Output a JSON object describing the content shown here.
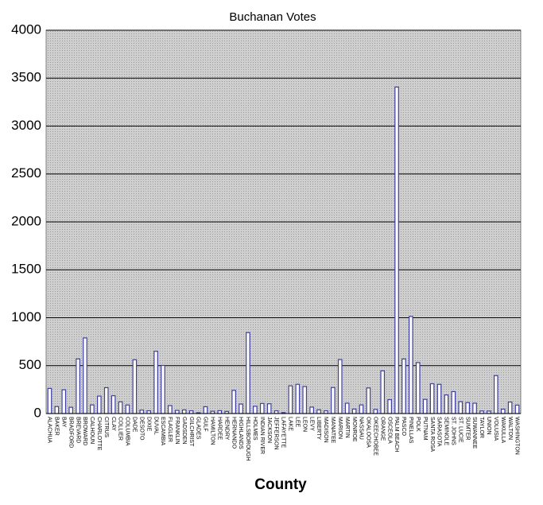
{
  "chart_data": {
    "type": "bar",
    "title": "Buchanan Votes",
    "x_label": "County",
    "categories": [
      "ALACHUA",
      "BAKER",
      "BAY",
      "BRADFORD",
      "BREVARD",
      "BROWARD",
      "CALHOUN",
      "CHARLOTTE",
      "CITRUS",
      "CLAY",
      "COLLIER",
      "COLUMBIA",
      "DADE",
      "DESOTO",
      "DIXIE",
      "DUVAL",
      "ESCAMBIA",
      "FLAGLER",
      "FRANKLIN",
      "GADSDEN",
      "GILCHRIST",
      "GLADES",
      "GULF",
      "HAMILTON",
      "HARDEE",
      "HENDRY",
      "HERNANDO",
      "HIGHLANDS",
      "HILLSBOROUGH",
      "HOLMES",
      "INDIAN RIVER",
      "JACKSON",
      "JEFFERSON",
      "LAFAYETTE",
      "LAKE",
      "LEE",
      "LEON",
      "LEVY",
      "LIBERTY",
      "MADISON",
      "MANATEE",
      "MARION",
      "MARTIN",
      "MONROE",
      "NASSAU",
      "OKALOOSA",
      "OKEECHOBEE",
      "ORANGE",
      "OSCEOLA",
      "PALM BEACH",
      "PASCO",
      "PINELLAS",
      "POLK",
      "PUTNAM",
      "SANTA ROSA",
      "SARASOTA",
      "SEMINOLE",
      "ST. JOHNS",
      "ST. LUCIE",
      "SUMTER",
      "SUWANNEE",
      "TAYLOR",
      "UNION",
      "VOLUSIA",
      "WAKULLA",
      "WALTON",
      "WASHINGTON"
    ],
    "values": [
      262,
      73,
      248,
      65,
      570,
      789,
      90,
      182,
      270,
      186,
      122,
      89,
      561,
      36,
      29,
      650,
      502,
      83,
      33,
      38,
      29,
      9,
      71,
      24,
      30,
      22,
      242,
      99,
      845,
      76,
      105,
      102,
      29,
      10,
      289,
      305,
      282,
      67,
      39,
      29,
      272,
      563,
      108,
      47,
      90,
      267,
      43,
      446,
      145,
      3407,
      570,
      1013,
      532,
      148,
      311,
      305,
      194,
      229,
      124,
      114,
      108,
      27,
      26,
      396,
      46,
      120,
      88
    ],
    "color": "#3f3fa0",
    "ylim": [
      0,
      4000
    ],
    "yticks": [
      0,
      500,
      1000,
      1500,
      2000,
      2500,
      3000,
      3500,
      4000
    ],
    "grid": true
  }
}
